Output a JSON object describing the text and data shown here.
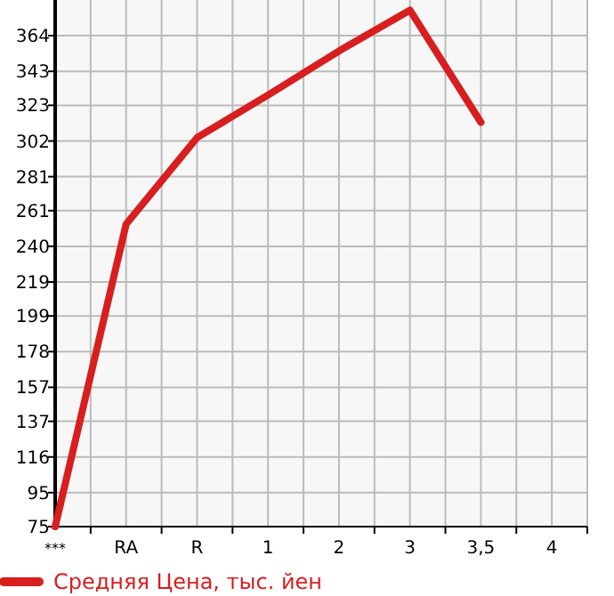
{
  "chart_data": {
    "type": "line",
    "categories": [
      "***",
      "RA",
      "R",
      "1",
      "2",
      "3",
      "3,5",
      "4"
    ],
    "series": [
      {
        "name": "Средняя Цена, тыс. йен",
        "color": "#d81e1e",
        "values": [
          75,
          253,
          304,
          329,
          355,
          379,
          313,
          null
        ]
      }
    ],
    "ylim": [
      75,
      385
    ],
    "yticks": [
      75,
      95,
      116,
      137,
      157,
      178,
      199,
      219,
      240,
      261,
      281,
      302,
      323,
      343,
      364
    ],
    "grid": true,
    "legend": "bottom",
    "marker": "none"
  }
}
